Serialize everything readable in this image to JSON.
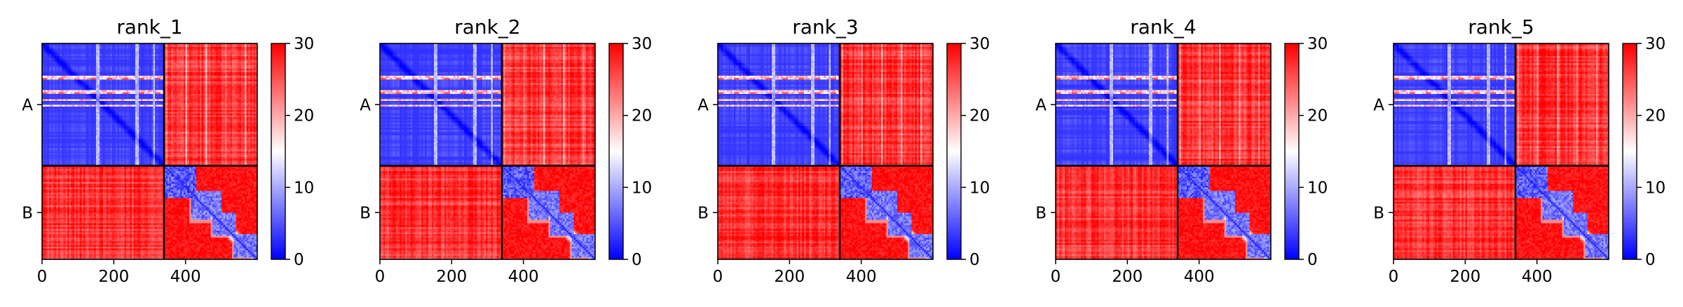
{
  "chart_data": [
    {
      "type": "heatmap",
      "title": "rank_1",
      "variant": 0,
      "x_ticks": [
        "0",
        "200",
        "400"
      ],
      "x_tick_values": [
        0,
        200,
        400
      ],
      "y_ticks": [
        "A",
        "B"
      ],
      "chains": [
        {
          "name": "A",
          "start": 0,
          "end": 340
        },
        {
          "name": "B",
          "start": 340,
          "end": 600
        }
      ],
      "xlim": [
        0,
        600
      ],
      "ylim": [
        0,
        600
      ],
      "colorbar": {
        "min": 0,
        "max": 30,
        "ticks": [
          "0",
          "10",
          "20",
          "30"
        ],
        "tick_values": [
          0,
          10,
          20,
          30
        ],
        "colormap": [
          "#0000ff",
          "#ffffff",
          "#ff0000"
        ]
      }
    },
    {
      "type": "heatmap",
      "title": "rank_2",
      "variant": 1,
      "x_ticks": [
        "0",
        "200",
        "400"
      ],
      "x_tick_values": [
        0,
        200,
        400
      ],
      "y_ticks": [
        "A",
        "B"
      ],
      "chains": [
        {
          "name": "A",
          "start": 0,
          "end": 340
        },
        {
          "name": "B",
          "start": 340,
          "end": 600
        }
      ],
      "xlim": [
        0,
        600
      ],
      "ylim": [
        0,
        600
      ],
      "colorbar": {
        "min": 0,
        "max": 30,
        "ticks": [
          "0",
          "10",
          "20",
          "30"
        ],
        "tick_values": [
          0,
          10,
          20,
          30
        ],
        "colormap": [
          "#0000ff",
          "#ffffff",
          "#ff0000"
        ]
      }
    },
    {
      "type": "heatmap",
      "title": "rank_3",
      "variant": 2,
      "x_ticks": [
        "0",
        "200",
        "400"
      ],
      "x_tick_values": [
        0,
        200,
        400
      ],
      "y_ticks": [
        "A",
        "B"
      ],
      "chains": [
        {
          "name": "A",
          "start": 0,
          "end": 340
        },
        {
          "name": "B",
          "start": 340,
          "end": 600
        }
      ],
      "xlim": [
        0,
        600
      ],
      "ylim": [
        0,
        600
      ],
      "colorbar": {
        "min": 0,
        "max": 30,
        "ticks": [
          "0",
          "10",
          "20",
          "30"
        ],
        "tick_values": [
          0,
          10,
          20,
          30
        ],
        "colormap": [
          "#0000ff",
          "#ffffff",
          "#ff0000"
        ]
      }
    },
    {
      "type": "heatmap",
      "title": "rank_4",
      "variant": 3,
      "x_ticks": [
        "0",
        "200",
        "400"
      ],
      "x_tick_values": [
        0,
        200,
        400
      ],
      "y_ticks": [
        "A",
        "B"
      ],
      "chains": [
        {
          "name": "A",
          "start": 0,
          "end": 340
        },
        {
          "name": "B",
          "start": 340,
          "end": 600
        }
      ],
      "xlim": [
        0,
        600
      ],
      "ylim": [
        0,
        600
      ],
      "colorbar": {
        "min": 0,
        "max": 30,
        "ticks": [
          "0",
          "10",
          "20",
          "30"
        ],
        "tick_values": [
          0,
          10,
          20,
          30
        ],
        "colormap": [
          "#0000ff",
          "#ffffff",
          "#ff0000"
        ]
      }
    },
    {
      "type": "heatmap",
      "title": "rank_5",
      "variant": 4,
      "x_ticks": [
        "0",
        "200",
        "400"
      ],
      "x_tick_values": [
        0,
        200,
        400
      ],
      "y_ticks": [
        "A",
        "B"
      ],
      "chains": [
        {
          "name": "A",
          "start": 0,
          "end": 340
        },
        {
          "name": "B",
          "start": 340,
          "end": 600
        }
      ],
      "xlim": [
        0,
        600
      ],
      "ylim": [
        0,
        600
      ],
      "colorbar": {
        "min": 0,
        "max": 30,
        "ticks": [
          "0",
          "10",
          "20",
          "30"
        ],
        "tick_values": [
          0,
          10,
          20,
          30
        ],
        "colormap": [
          "#0000ff",
          "#ffffff",
          "#ff0000"
        ]
      }
    }
  ]
}
